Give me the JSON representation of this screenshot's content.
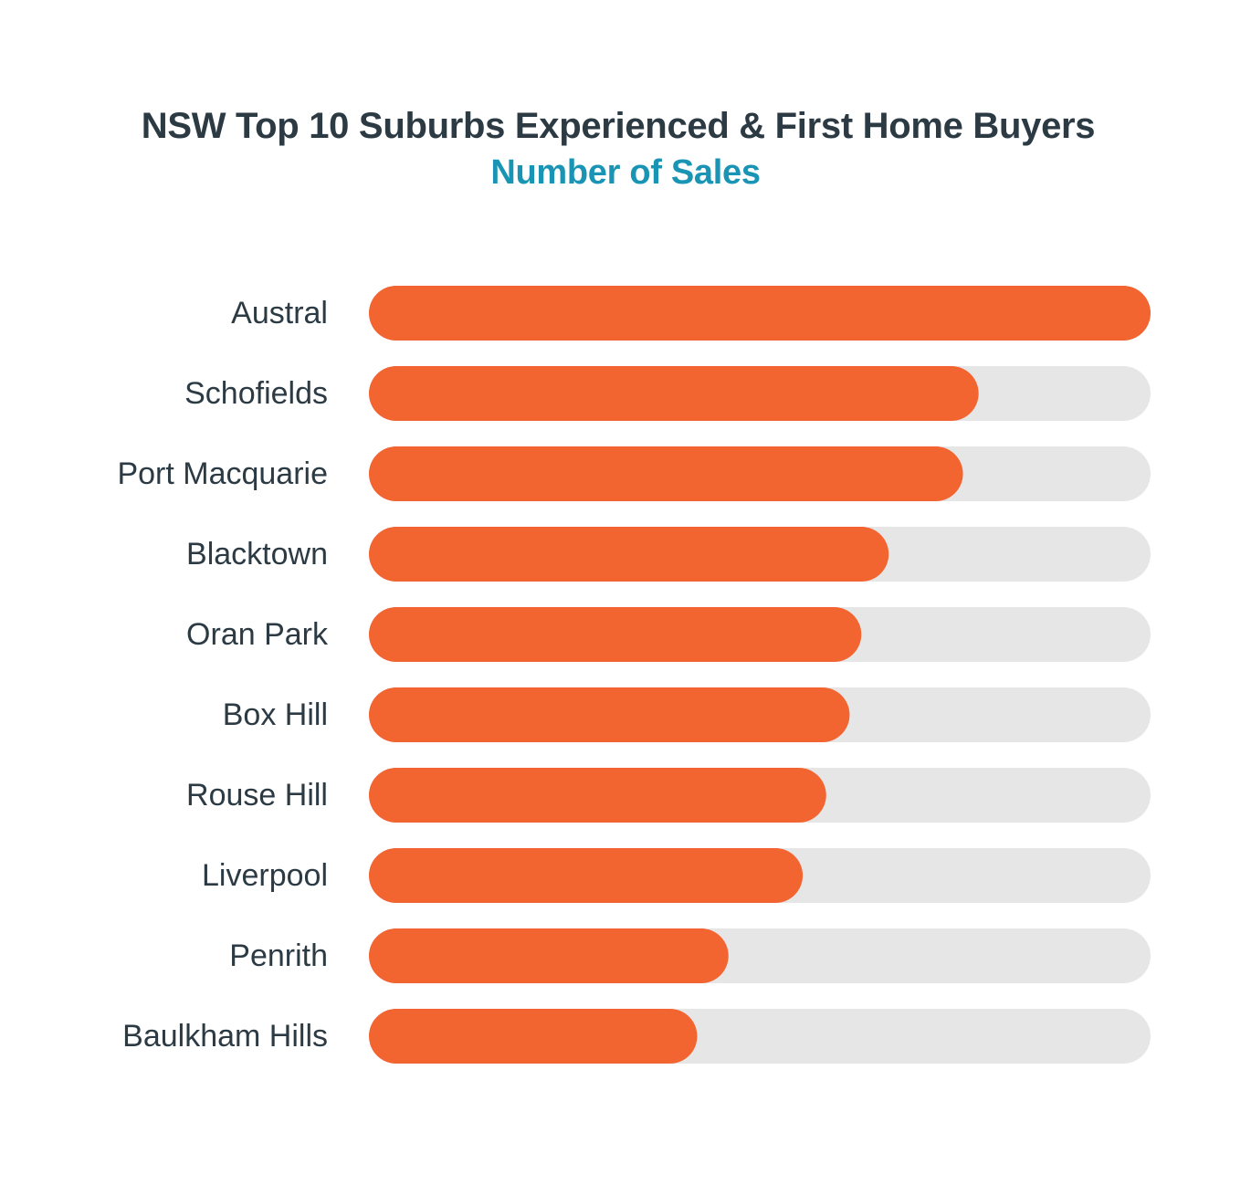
{
  "chart_data": {
    "type": "bar",
    "orientation": "horizontal",
    "title": "NSW Top 10 Suburbs Experienced & First Home Buyers",
    "subtitle": "Number of Sales",
    "categories": [
      "Austral",
      "Schofields",
      "Port Macquarie",
      "Blacktown",
      "Oran Park",
      "Box Hill",
      "Rouse Hill",
      "Liverpool",
      "Penrith",
      "Baulkham Hills"
    ],
    "values": [
      100,
      78,
      76,
      66.5,
      63,
      61.5,
      58.5,
      55.5,
      46,
      42
    ],
    "xlim": [
      0,
      100
    ],
    "grid": false,
    "legend": "none",
    "colors": {
      "bar": "#f26430",
      "track": "#e6e6e6",
      "title": "#2c3a44",
      "subtitle": "#1a94b4",
      "label": "#2c3a44"
    }
  }
}
